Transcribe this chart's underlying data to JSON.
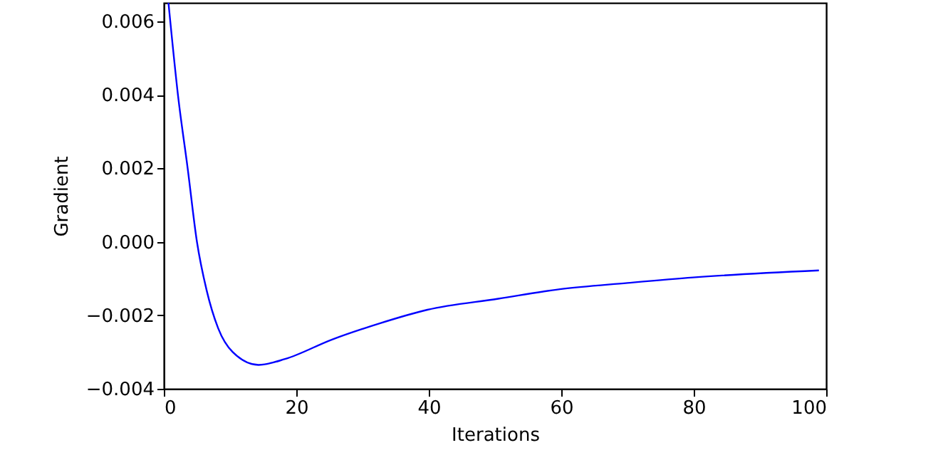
{
  "chart_data": {
    "type": "line",
    "xlabel": "Iterations",
    "ylabel": "Gradient",
    "x": [
      0.7,
      2.15,
      3.6,
      5.0,
      6.45,
      8.2,
      10.4,
      14.3,
      18.3,
      25.4,
      32.6,
      39.8,
      50.5,
      59.8,
      70,
      79.9,
      98.9
    ],
    "series": [
      {
        "color": "#0000ff",
        "values": [
          0.0065,
          0.00397,
          0.002,
          0.0,
          -0.00131,
          -0.00235,
          -0.003,
          -0.00335,
          -0.00319,
          -0.00266,
          -0.00222,
          -0.00185,
          -0.00155,
          -0.00129,
          -0.00112,
          -0.00097,
          -0.00078
        ]
      }
    ],
    "xlim": [
      0,
      100
    ],
    "xticks": [
      0,
      20,
      40,
      60,
      80,
      100
    ],
    "ylim": [
      -0.004,
      0.0065
    ],
    "yticks": [
      {
        "value": -0.004,
        "label": "−0.004"
      },
      {
        "value": -0.002,
        "label": "−0.002"
      },
      {
        "value": 0.0,
        "label": "0.000"
      },
      {
        "value": 0.002,
        "label": "0.002"
      },
      {
        "value": 0.004,
        "label": "0.004"
      },
      {
        "value": 0.006,
        "label": "0.006"
      }
    ],
    "grid": false,
    "marker": "none",
    "line_style": "solid"
  }
}
